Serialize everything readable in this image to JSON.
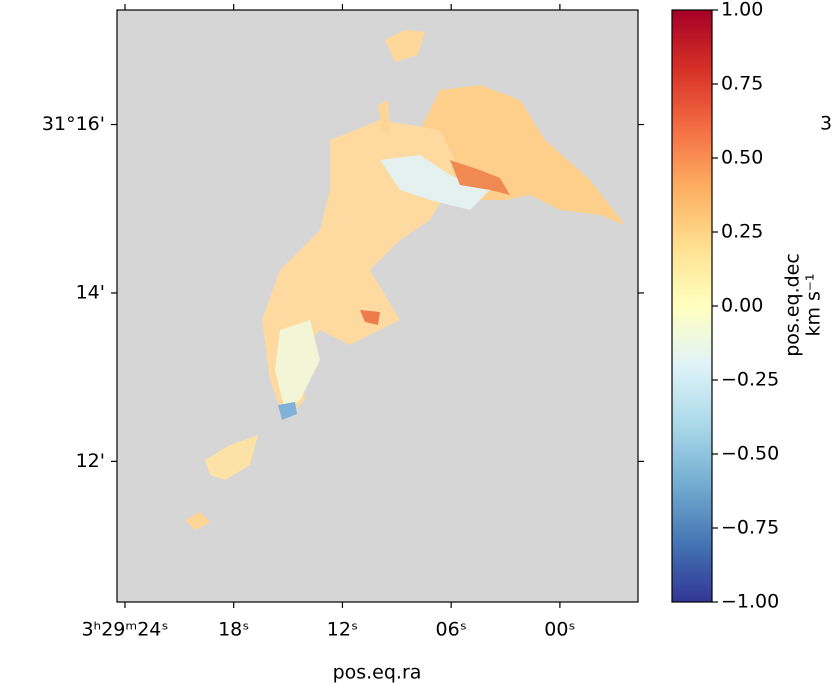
{
  "chart_data": {
    "type": "image",
    "xlabel": "pos.eq.ra",
    "ylabel": "pos.eq.dec",
    "right_label_fragment": "3",
    "xlim": [
      24.44,
      -4.31
    ],
    "xticks": [
      {
        "value": 24,
        "label": "3ʰ29ᵐ24ˢ"
      },
      {
        "value": 18,
        "label": "18ˢ"
      },
      {
        "value": 12,
        "label": "12ˢ"
      },
      {
        "value": 6,
        "label": "06ˢ"
      },
      {
        "value": 0,
        "label": "00ˢ"
      }
    ],
    "ylim": [
      10.33,
      17.36
    ],
    "yticks": [
      {
        "value": 12,
        "label": "12'"
      },
      {
        "value": 14,
        "label": "14'"
      },
      {
        "value": 16,
        "label": "31°16'"
      }
    ],
    "background": "#d6d6d6",
    "colorbar": {
      "label": "km s⁻¹",
      "clim": [
        -1,
        1
      ],
      "colors": [
        "#313695",
        "#4575b4",
        "#74add1",
        "#abd9e9",
        "#e0f3f8",
        "#ffffbf",
        "#fee090",
        "#fdae61",
        "#f46d43",
        "#d73027",
        "#a50026"
      ],
      "ticks": [
        {
          "value": 1,
          "label": "1.00"
        },
        {
          "value": 0.75,
          "label": "0.75"
        },
        {
          "value": 0.5,
          "label": "0.50"
        },
        {
          "value": 0.25,
          "label": "0.25"
        },
        {
          "value": 0,
          "label": "0.00"
        },
        {
          "value": -0.25,
          "label": "−0.25"
        },
        {
          "value": -0.5,
          "label": "−0.50"
        },
        {
          "value": -0.75,
          "label": "−0.75"
        },
        {
          "value": -1,
          "label": "−1.00"
        }
      ]
    }
  }
}
